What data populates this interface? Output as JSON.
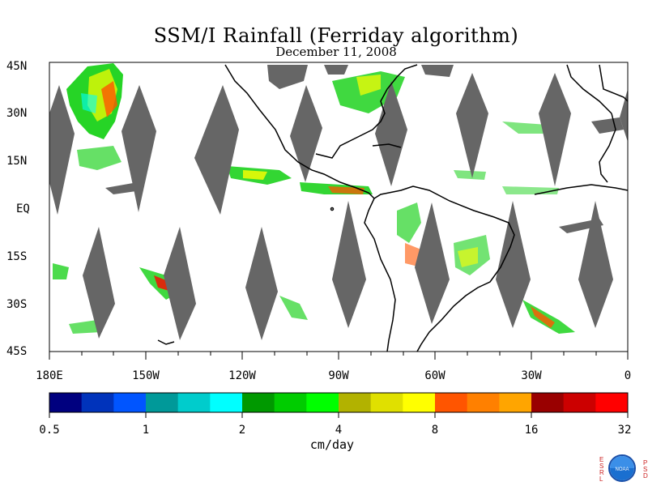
{
  "title": "SSM/I Rainfall (Ferriday algorithm)",
  "subtitle": "December 11, 2008",
  "lat_labels": [
    "45N",
    "30N",
    "15N",
    "EQ",
    "15S",
    "30S",
    "45S"
  ],
  "lon_labels": [
    "180E",
    "150W",
    "120W",
    "90W",
    "60W",
    "30W",
    "0"
  ],
  "colorbar": {
    "colors": [
      "#00007f",
      "#0033bb",
      "#0055ff",
      "#009999",
      "#00cccc",
      "#00ffff",
      "#009900",
      "#00cc00",
      "#00ff00",
      "#b2b200",
      "#e0e000",
      "#ffff00",
      "#ff5500",
      "#ff8000",
      "#ffa500",
      "#990000",
      "#cc0000",
      "#ff0000"
    ],
    "tick_labels": [
      "0.5",
      "1",
      "2",
      "4",
      "8",
      "16",
      "32"
    ],
    "units": "cm/day"
  },
  "logo": {
    "left_letters": "ESRL",
    "right_letters": "PSD",
    "emblem_text": "NOAA"
  },
  "colors": {
    "swath_gap": "#666666",
    "coast": "#000000",
    "land_mask": "#666666"
  }
}
